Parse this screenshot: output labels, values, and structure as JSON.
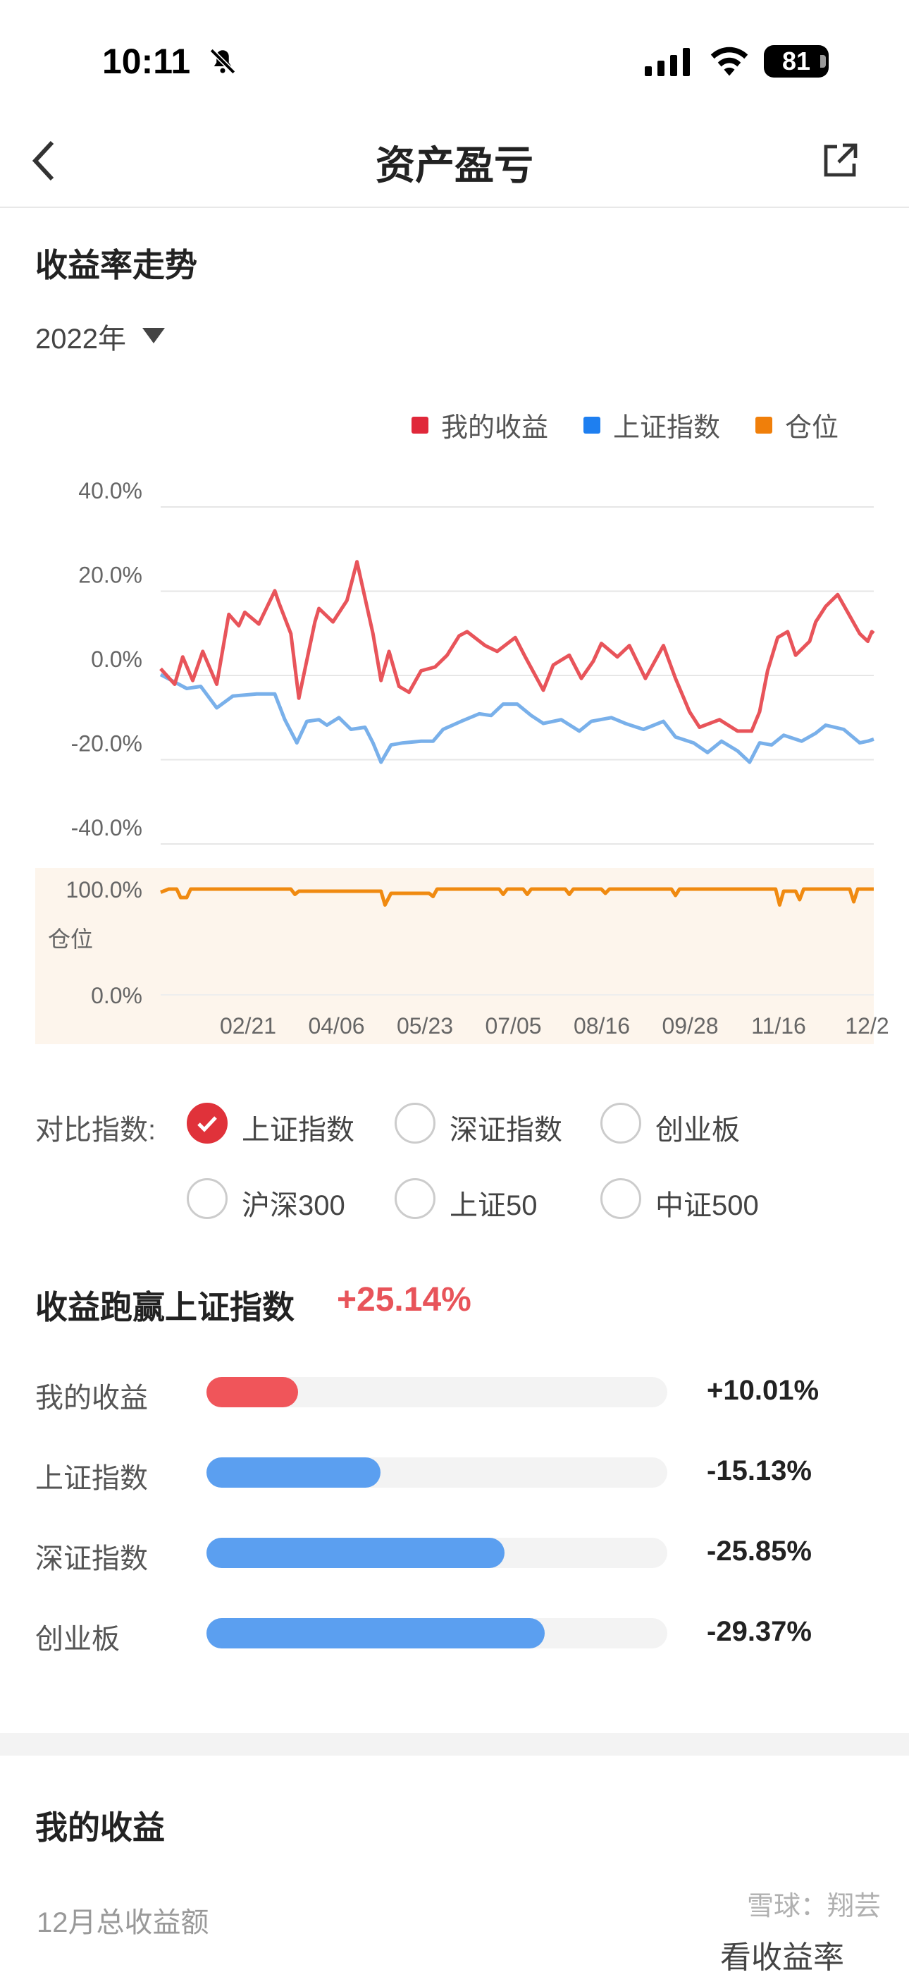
{
  "status_bar": {
    "time": "10:11",
    "battery": "81",
    "icons": [
      "bell-slash-icon",
      "signal-icon",
      "wifi-icon",
      "battery-icon"
    ]
  },
  "nav": {
    "title": "资产盈亏",
    "back_icon": "chevron-left-icon",
    "share_icon": "share-external-icon"
  },
  "trend": {
    "title": "收益率走势",
    "year": "2022年",
    "legend": [
      {
        "label": "我的收益",
        "color": "#e0283a"
      },
      {
        "label": "上证指数",
        "color": "#1e7ff0"
      },
      {
        "label": "仓位",
        "color": "#f07f0a"
      }
    ]
  },
  "chart_data": [
    {
      "type": "line",
      "y_ticks": [
        "40.0%",
        "20.0%",
        "0.0%",
        "-20.0%",
        "-40.0%"
      ],
      "ylim": [
        -40,
        40
      ],
      "xlim": [
        "01/08",
        "12/30"
      ],
      "x_ticks": [
        "02/21",
        "04/06",
        "05/23",
        "07/05",
        "08/16",
        "09/28",
        "11/16",
        "12/2"
      ],
      "grid": true,
      "legend_position": "top-right",
      "series": [
        {
          "name": "我的收益",
          "color": "#e8545a",
          "points": [
            [
              "01/08",
              1.6
            ],
            [
              "01/15",
              -2.1
            ],
            [
              "01/19",
              4.4
            ],
            [
              "01/24",
              -1.2
            ],
            [
              "01/29",
              5.7
            ],
            [
              "02/05",
              -2.1
            ],
            [
              "02/11",
              14.5
            ],
            [
              "02/16",
              11.8
            ],
            [
              "02/19",
              15
            ],
            [
              "02/26",
              12.2
            ],
            [
              "03/06",
              20.1
            ],
            [
              "03/08",
              17.3
            ],
            [
              "03/14",
              9.9
            ],
            [
              "03/18",
              -5.4
            ],
            [
              "03/26",
              12.7
            ],
            [
              "03/28",
              15.9
            ],
            [
              "04/04",
              12.7
            ],
            [
              "04/11",
              17.8
            ],
            [
              "04/16",
              27
            ],
            [
              "04/19",
              20.6
            ],
            [
              "04/24",
              9.9
            ],
            [
              "04/28",
              -1.2
            ],
            [
              "05/02",
              5.7
            ],
            [
              "05/07",
              -2.6
            ],
            [
              "05/12",
              -4
            ],
            [
              "05/18",
              1.1
            ],
            [
              "05/25",
              2
            ],
            [
              "05/31",
              4.8
            ],
            [
              "06/06",
              9.4
            ],
            [
              "06/10",
              10.4
            ],
            [
              "06/19",
              7.1
            ],
            [
              "06/25",
              5.7
            ],
            [
              "07/04",
              9
            ],
            [
              "07/09",
              4.4
            ],
            [
              "07/18",
              -3.5
            ],
            [
              "07/23",
              2.5
            ],
            [
              "07/31",
              4.8
            ],
            [
              "08/06",
              -0.7
            ],
            [
              "08/12",
              3.4
            ],
            [
              "08/16",
              7.6
            ],
            [
              "08/24",
              4.4
            ],
            [
              "08/30",
              7.1
            ],
            [
              "09/07",
              -0.7
            ],
            [
              "09/16",
              7.1
            ],
            [
              "09/22",
              -0.7
            ],
            [
              "09/29",
              -8.6
            ],
            [
              "10/04",
              -12.3
            ],
            [
              "10/14",
              -10.5
            ],
            [
              "10/23",
              -13.2
            ],
            [
              "10/30",
              -13.2
            ],
            [
              "11/03",
              -8.6
            ],
            [
              "11/07",
              1.1
            ],
            [
              "11/12",
              9
            ],
            [
              "11/17",
              10.4
            ],
            [
              "11/21",
              4.8
            ],
            [
              "11/28",
              8.1
            ],
            [
              "12/01",
              12.7
            ],
            [
              "12/06",
              16.4
            ],
            [
              "12/12",
              19.2
            ],
            [
              "12/17",
              15
            ],
            [
              "12/23",
              9.9
            ],
            [
              "12/27",
              8.1
            ],
            [
              "12/29",
              10.4
            ],
            [
              "12/30",
              10.01
            ]
          ]
        },
        {
          "name": "上证指数",
          "color": "#79b0ea",
          "points": [
            [
              "01/08",
              0.2
            ],
            [
              "01/21",
              -3.1
            ],
            [
              "01/28",
              -2.6
            ],
            [
              "02/05",
              -7.7
            ],
            [
              "02/13",
              -4.9
            ],
            [
              "02/25",
              -4.4
            ],
            [
              "03/06",
              -4.4
            ],
            [
              "03/11",
              -10.5
            ],
            [
              "03/17",
              -16
            ],
            [
              "03/22",
              -10.9
            ],
            [
              "03/28",
              -10.5
            ],
            [
              "04/01",
              -11.8
            ],
            [
              "04/07",
              -10
            ],
            [
              "04/13",
              -12.8
            ],
            [
              "04/20",
              -12.3
            ],
            [
              "04/24",
              -16
            ],
            [
              "04/28",
              -20.6
            ],
            [
              "05/03",
              -16.5
            ],
            [
              "05/09",
              -16
            ],
            [
              "05/18",
              -15.6
            ],
            [
              "05/24",
              -15.6
            ],
            [
              "05/29",
              -12.8
            ],
            [
              "06/07",
              -10.9
            ],
            [
              "06/16",
              -9.1
            ],
            [
              "06/22",
              -9.5
            ],
            [
              "06/28",
              -6.8
            ],
            [
              "07/05",
              -6.8
            ],
            [
              "07/12",
              -9.5
            ],
            [
              "07/18",
              -11.4
            ],
            [
              "07/27",
              -10.5
            ],
            [
              "08/05",
              -13.2
            ],
            [
              "08/11",
              -10.9
            ],
            [
              "08/21",
              -10
            ],
            [
              "08/28",
              -11.4
            ],
            [
              "09/06",
              -12.8
            ],
            [
              "09/16",
              -10.9
            ],
            [
              "09/22",
              -14.6
            ],
            [
              "10/01",
              -16
            ],
            [
              "10/08",
              -18.3
            ],
            [
              "10/15",
              -15.6
            ],
            [
              "10/23",
              -17.9
            ],
            [
              "10/29",
              -20.6
            ],
            [
              "11/03",
              -16
            ],
            [
              "11/09",
              -16.5
            ],
            [
              "11/15",
              -14.2
            ],
            [
              "11/24",
              -15.6
            ],
            [
              "12/01",
              -13.7
            ],
            [
              "12/06",
              -11.8
            ],
            [
              "12/15",
              -12.8
            ],
            [
              "12/23",
              -16
            ],
            [
              "12/27",
              -15.6
            ],
            [
              "12/30",
              -15.13
            ]
          ]
        }
      ]
    },
    {
      "type": "line",
      "y_ticks": [
        "100.0%",
        "0.0%"
      ],
      "ylabel": "仓位",
      "ylim": [
        0,
        100
      ],
      "series": [
        {
          "name": "仓位",
          "color": "#f08a10",
          "points": [
            [
              "01/08",
              97
            ],
            [
              "01/12",
              100
            ],
            [
              "01/16",
              100
            ],
            [
              "01/18",
              92
            ],
            [
              "01/21",
              92
            ],
            [
              "01/23",
              100
            ],
            [
              "03/14",
              100
            ],
            [
              "03/16",
              95
            ],
            [
              "03/18",
              98
            ],
            [
              "04/28",
              98
            ],
            [
              "04/30",
              85
            ],
            [
              "05/03",
              96
            ],
            [
              "05/22",
              96
            ],
            [
              "05/24",
              93
            ],
            [
              "05/26",
              100
            ],
            [
              "06/26",
              100
            ],
            [
              "06/28",
              95
            ],
            [
              "06/30",
              100
            ],
            [
              "07/08",
              100
            ],
            [
              "07/10",
              95
            ],
            [
              "07/12",
              100
            ],
            [
              "07/29",
              100
            ],
            [
              "07/31",
              95
            ],
            [
              "08/02",
              100
            ],
            [
              "08/16",
              100
            ],
            [
              "08/18",
              96
            ],
            [
              "08/20",
              100
            ],
            [
              "09/20",
              100
            ],
            [
              "09/22",
              94
            ],
            [
              "09/24",
              100
            ],
            [
              "11/11",
              100
            ],
            [
              "11/13",
              85
            ],
            [
              "11/15",
              98
            ],
            [
              "11/21",
              98
            ],
            [
              "11/23",
              90
            ],
            [
              "11/25",
              100
            ],
            [
              "12/18",
              100
            ],
            [
              "12/20",
              88
            ],
            [
              "12/22",
              100
            ],
            [
              "12/30",
              100
            ]
          ]
        }
      ]
    }
  ],
  "compare": {
    "label": "对比指数:",
    "options": [
      {
        "label": "上证指数",
        "checked": true
      },
      {
        "label": "深证指数",
        "checked": false
      },
      {
        "label": "创业板",
        "checked": false
      },
      {
        "label": "沪深300",
        "checked": false
      },
      {
        "label": "上证50",
        "checked": false
      },
      {
        "label": "中证500",
        "checked": false
      }
    ]
  },
  "outperform": {
    "title": "收益跑赢上证指数",
    "value": "+25.14%",
    "value_color": "#e8545a",
    "bars": [
      {
        "label": "我的收益",
        "value": "+10.01%",
        "magnitude": 10.01,
        "color": "#f0555a"
      },
      {
        "label": "上证指数",
        "value": "-15.13%",
        "magnitude": 15.13,
        "color": "#5b9ff0"
      },
      {
        "label": "深证指数",
        "value": "-25.85%",
        "magnitude": 25.85,
        "color": "#5b9ff0"
      },
      {
        "label": "创业板",
        "value": "-29.37%",
        "magnitude": 29.37,
        "color": "#5b9ff0"
      }
    ]
  },
  "my_income": {
    "title": "我的收益",
    "subtitle": "12月总收益额",
    "button": "看收益率"
  },
  "watermark": "雪球：翔芸"
}
